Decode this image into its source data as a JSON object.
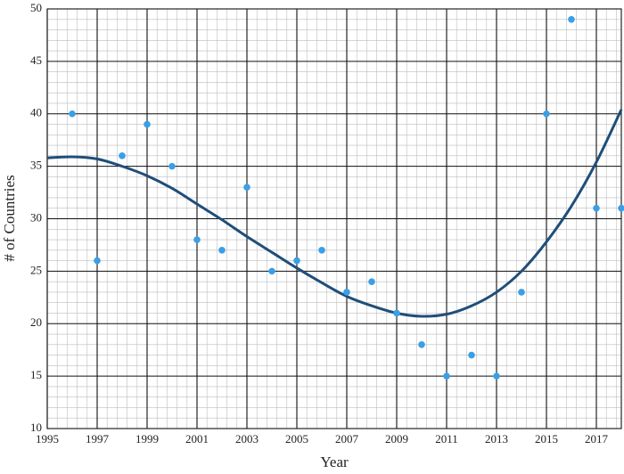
{
  "chart_data": {
    "type": "scatter",
    "x_label": "Year",
    "y_label": "# of Countries",
    "xlim": [
      1995,
      2018
    ],
    "ylim": [
      10,
      50
    ],
    "xticks": [
      1995,
      1997,
      1999,
      2001,
      2003,
      2005,
      2007,
      2009,
      2011,
      2013,
      2015,
      2017
    ],
    "yticks": [
      10,
      15,
      20,
      25,
      30,
      35,
      40,
      45,
      50
    ],
    "grid": true,
    "series": [
      {
        "type": "scatter",
        "color": "#3a9fe6",
        "x": [
          1996,
          1997,
          1998,
          1999,
          2000,
          2001,
          2002,
          2003,
          2004,
          2005,
          2006,
          2007,
          2008,
          2009,
          2010,
          2011,
          2012,
          2013,
          2014,
          2015,
          2016,
          2017,
          2018
        ],
        "y": [
          40,
          26,
          36,
          39,
          35,
          28,
          27,
          33,
          25,
          26,
          27,
          23,
          24,
          21,
          18,
          15,
          17,
          15,
          23,
          40,
          49,
          31,
          31
        ]
      },
      {
        "type": "line",
        "color": "#1f4e79",
        "x": [
          1995,
          1996,
          1997,
          1998,
          1999,
          2000,
          2001,
          2002,
          2003,
          2004,
          2005,
          2006,
          2007,
          2008,
          2009,
          2010,
          2011,
          2012,
          2013,
          2014,
          2015,
          2016,
          2017,
          2018
        ],
        "y": [
          35.8,
          35.9,
          35.7,
          35.0,
          34.1,
          32.9,
          31.4,
          29.9,
          28.3,
          26.8,
          25.3,
          23.9,
          22.6,
          21.7,
          21.0,
          20.7,
          20.9,
          21.7,
          23.0,
          25.0,
          27.8,
          31.2,
          35.4,
          40.4
        ]
      }
    ]
  }
}
